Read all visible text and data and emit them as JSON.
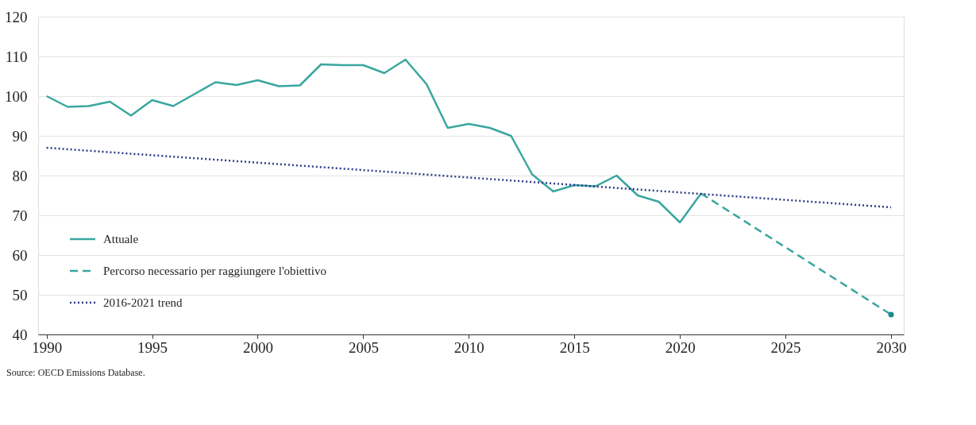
{
  "chart_data": {
    "type": "line",
    "xlim": [
      1989.6,
      2030.6
    ],
    "xticks": [
      1990,
      1995,
      2000,
      2005,
      2010,
      2015,
      2020,
      2025,
      2030
    ],
    "ylim": [
      40,
      120
    ],
    "yticks": [
      40,
      50,
      60,
      70,
      80,
      90,
      100,
      110,
      120
    ],
    "grid": "y",
    "legend": "bottom left",
    "annotations": [
      "Source: OECD Emissions Database."
    ],
    "series": [
      {
        "name": "Attuale",
        "color": "#3aa6a0",
        "line_style": "solid",
        "x": [
          1990,
          1991,
          1992,
          1993,
          1994,
          1995,
          1996,
          1997,
          1998,
          1999,
          2000,
          2001,
          2002,
          2003,
          2004,
          2005,
          2006,
          2007,
          2008,
          2009,
          2010,
          2011,
          2012,
          2013,
          2014,
          2015,
          2016,
          2017,
          2018,
          2019,
          2020,
          2021
        ],
        "values": [
          100,
          97.3,
          97.5,
          98.6,
          95.1,
          99,
          97.5,
          100.5,
          103.5,
          102.8,
          104,
          102.5,
          102.7,
          108,
          107.8,
          107.8,
          105.8,
          109.2,
          103,
          92,
          93,
          92,
          90,
          80.3,
          76,
          77.6,
          77.3,
          80,
          75,
          73.4,
          68.2,
          75.5
        ]
      },
      {
        "name": "Percorso necessario per raggiungere l'obiettivo",
        "color": "#3aa6a0",
        "line_style": "dashed",
        "x": [
          2021,
          2030
        ],
        "values": [
          75.5,
          45
        ]
      },
      {
        "type": "scatter",
        "color": "#1f8a86",
        "marker": "circle",
        "x": [
          2030
        ],
        "values": [
          45
        ]
      },
      {
        "name": "2016-2021 trend",
        "color": "#2e3a87",
        "line_style": "dotted",
        "x": [
          1990,
          2030
        ],
        "values": [
          87,
          72
        ]
      }
    ]
  }
}
